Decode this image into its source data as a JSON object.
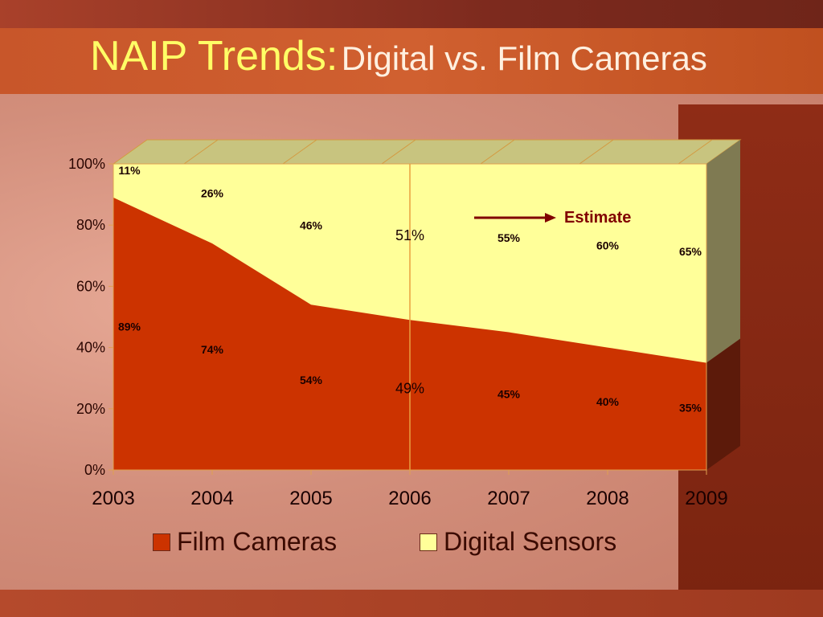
{
  "slide": {
    "title_main": "NAIP Trends:",
    "title_sub": "Digital vs. Film Cameras",
    "colors": {
      "film": "#cc3300",
      "digital": "#ffff99",
      "top_face": "#c8c47f",
      "right_digital": "#7f7a52",
      "right_film": "#5c1a0a",
      "title": "#ffff66"
    }
  },
  "chart_data": {
    "type": "area",
    "stacked": true,
    "x": [
      "2003",
      "2004",
      "2005",
      "2006",
      "2007",
      "2008",
      "2009"
    ],
    "series": [
      {
        "name": "Film Cameras",
        "values": [
          89,
          74,
          54,
          49,
          45,
          40,
          35
        ],
        "labels": [
          "89%",
          "74%",
          "54%",
          "49%",
          "45%",
          "40%",
          "35%"
        ]
      },
      {
        "name": "Digital Sensors",
        "values": [
          11,
          26,
          46,
          51,
          55,
          60,
          65
        ],
        "labels": [
          "11%",
          "26%",
          "46%",
          "51%",
          "55%",
          "60%",
          "65%"
        ]
      }
    ],
    "ylim": [
      0,
      100
    ],
    "y_ticks": [
      "0%",
      "20%",
      "40%",
      "60%",
      "80%",
      "100%"
    ],
    "annotation": "Estimate",
    "estimate_from": "2006",
    "legend_position": "bottom"
  }
}
